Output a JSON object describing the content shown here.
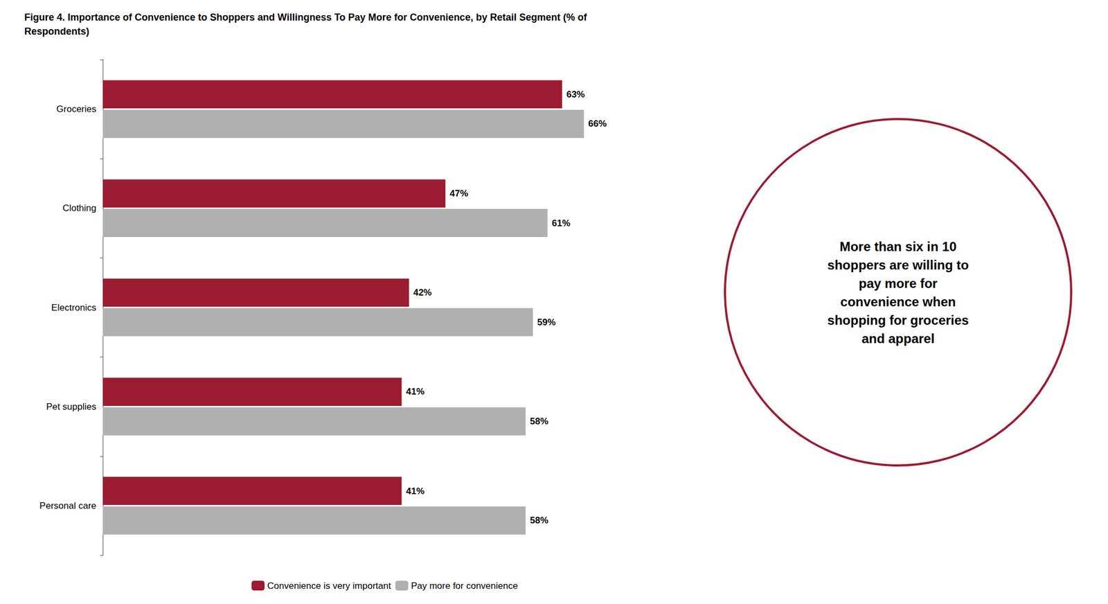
{
  "chart_data": {
    "type": "bar",
    "orientation": "horizontal",
    "title": "Figure 4. Importance of Convenience to Shoppers and Willingness To Pay More for Convenience, by Retail Segment (% of\nRespondents)",
    "categories": [
      "Groceries",
      "Clothing",
      "Electronics",
      "Pet supplies",
      "Personal care"
    ],
    "series": [
      {
        "name": "Convenience is very important",
        "color": "#9B1B30",
        "values": [
          63,
          47,
          42,
          41,
          41
        ],
        "value_labels": [
          "63%",
          "47%",
          "42%",
          "41%",
          "41%"
        ]
      },
      {
        "name": "Pay more for convenience",
        "color": "#B0B0B0",
        "values": [
          66,
          61,
          59,
          58,
          58
        ],
        "value_labels": [
          "66%",
          "61%",
          "59%",
          "58%",
          "58%"
        ]
      }
    ],
    "xlim": [
      0,
      80
    ],
    "tick_labels": "y",
    "grid": false,
    "legend": "bottom",
    "data_labels": true,
    "annotations": [
      {
        "text": "More than six in 10\nshoppers are willing to\npay more for\nconvenience when\nshopping for groceries\nand apparel",
        "color": "#9B1B30"
      }
    ]
  }
}
